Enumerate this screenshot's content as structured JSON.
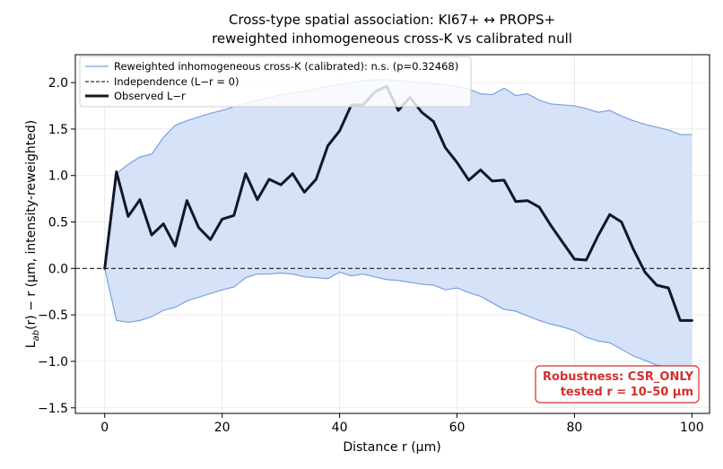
{
  "chart_data": {
    "type": "line",
    "title": "Cross-type spatial association: KI67+ ↔ PROPS+",
    "subtitle": "reweighted inhomogeneous cross-K vs calibrated null",
    "xlabel": "Distance r (μm)",
    "ylabel": {
      "prefix": "L",
      "subscript": "ab",
      "suffix": "(r) − r  (μm, intensity-reweighted)"
    },
    "xlim": [
      -5,
      103
    ],
    "ylim": [
      -1.56,
      2.3
    ],
    "xticks": [
      0,
      20,
      40,
      60,
      80,
      100
    ],
    "yticks": [
      -1.5,
      -1.0,
      -0.5,
      0.0,
      0.5,
      1.0,
      1.5,
      2.0
    ],
    "xtick_labels": [
      "0",
      "20",
      "40",
      "60",
      "80",
      "100"
    ],
    "ytick_labels": [
      "−1.5",
      "−1.0",
      "−0.5",
      "0.0",
      "0.5",
      "1.0",
      "1.5",
      "2.0"
    ],
    "grid": true,
    "legend_position": "top-left",
    "series": [
      {
        "name": "Reweighted inhomogeneous cross-K (calibrated): n.s. (p=0.32468)",
        "kind": "envelope",
        "color": "#7aa0e0",
        "fill": "#d6e2f8",
        "x": [
          0,
          2,
          4,
          6,
          8,
          10,
          12,
          14,
          16,
          18,
          20,
          22,
          24,
          26,
          28,
          30,
          32,
          34,
          36,
          38,
          40,
          42,
          44,
          46,
          48,
          50,
          52,
          54,
          56,
          58,
          60,
          62,
          64,
          66,
          68,
          70,
          72,
          74,
          76,
          78,
          80,
          82,
          84,
          86,
          88,
          90,
          92,
          94,
          96,
          98,
          100
        ],
        "upper": [
          0.0,
          1.02,
          1.12,
          1.2,
          1.23,
          1.41,
          1.54,
          1.59,
          1.63,
          1.67,
          1.7,
          1.74,
          1.78,
          1.81,
          1.84,
          1.87,
          1.89,
          1.91,
          1.93,
          1.96,
          1.98,
          2.0,
          2.02,
          2.03,
          2.03,
          2.02,
          2.01,
          2.0,
          1.99,
          1.98,
          1.96,
          1.93,
          1.88,
          1.87,
          1.94,
          1.86,
          1.88,
          1.81,
          1.77,
          1.76,
          1.75,
          1.72,
          1.68,
          1.7,
          1.64,
          1.59,
          1.55,
          1.52,
          1.49,
          1.44,
          1.44
        ],
        "lower": [
          0.0,
          -0.56,
          -0.58,
          -0.56,
          -0.52,
          -0.45,
          -0.42,
          -0.35,
          -0.31,
          -0.27,
          -0.23,
          -0.2,
          -0.1,
          -0.06,
          -0.06,
          -0.05,
          -0.06,
          -0.09,
          -0.1,
          -0.11,
          -0.04,
          -0.08,
          -0.06,
          -0.09,
          -0.12,
          -0.13,
          -0.15,
          -0.17,
          -0.18,
          -0.23,
          -0.21,
          -0.26,
          -0.3,
          -0.37,
          -0.44,
          -0.46,
          -0.51,
          -0.56,
          -0.6,
          -0.63,
          -0.67,
          -0.74,
          -0.78,
          -0.8,
          -0.87,
          -0.94,
          -0.99,
          -1.04,
          -1.06,
          -1.07,
          -1.1
        ]
      },
      {
        "name": "Independence (L−r = 0)",
        "kind": "reference",
        "color": "#333333",
        "y": 0
      },
      {
        "name": "Observed L−r",
        "kind": "line",
        "color": "#111827",
        "x": [
          0,
          2,
          4,
          6,
          8,
          10,
          12,
          14,
          16,
          18,
          20,
          22,
          24,
          26,
          28,
          30,
          32,
          34,
          36,
          38,
          40,
          42,
          44,
          46,
          48,
          50,
          52,
          54,
          56,
          58,
          60,
          62,
          64,
          66,
          68,
          70,
          72,
          74,
          76,
          78,
          80,
          82,
          84,
          86,
          88,
          90,
          92,
          94,
          96,
          98,
          100
        ],
        "y": [
          0.0,
          1.04,
          0.56,
          0.74,
          0.36,
          0.48,
          0.24,
          0.73,
          0.44,
          0.31,
          0.53,
          0.57,
          1.02,
          0.74,
          0.96,
          0.9,
          1.02,
          0.82,
          0.96,
          1.32,
          1.48,
          1.76,
          1.76,
          1.9,
          1.96,
          1.7,
          1.84,
          1.68,
          1.58,
          1.3,
          1.14,
          0.95,
          1.06,
          0.94,
          0.95,
          0.72,
          0.73,
          0.66,
          0.46,
          0.28,
          0.1,
          0.09,
          0.35,
          0.58,
          0.5,
          0.21,
          -0.04,
          -0.18,
          -0.21,
          -0.56,
          -0.56
        ]
      }
    ],
    "annotation": {
      "lines": [
        "Robustness: CSR_ONLY",
        "tested r = 10–50 μm"
      ],
      "color": "#d32f2f",
      "position": "bottom-right"
    }
  }
}
